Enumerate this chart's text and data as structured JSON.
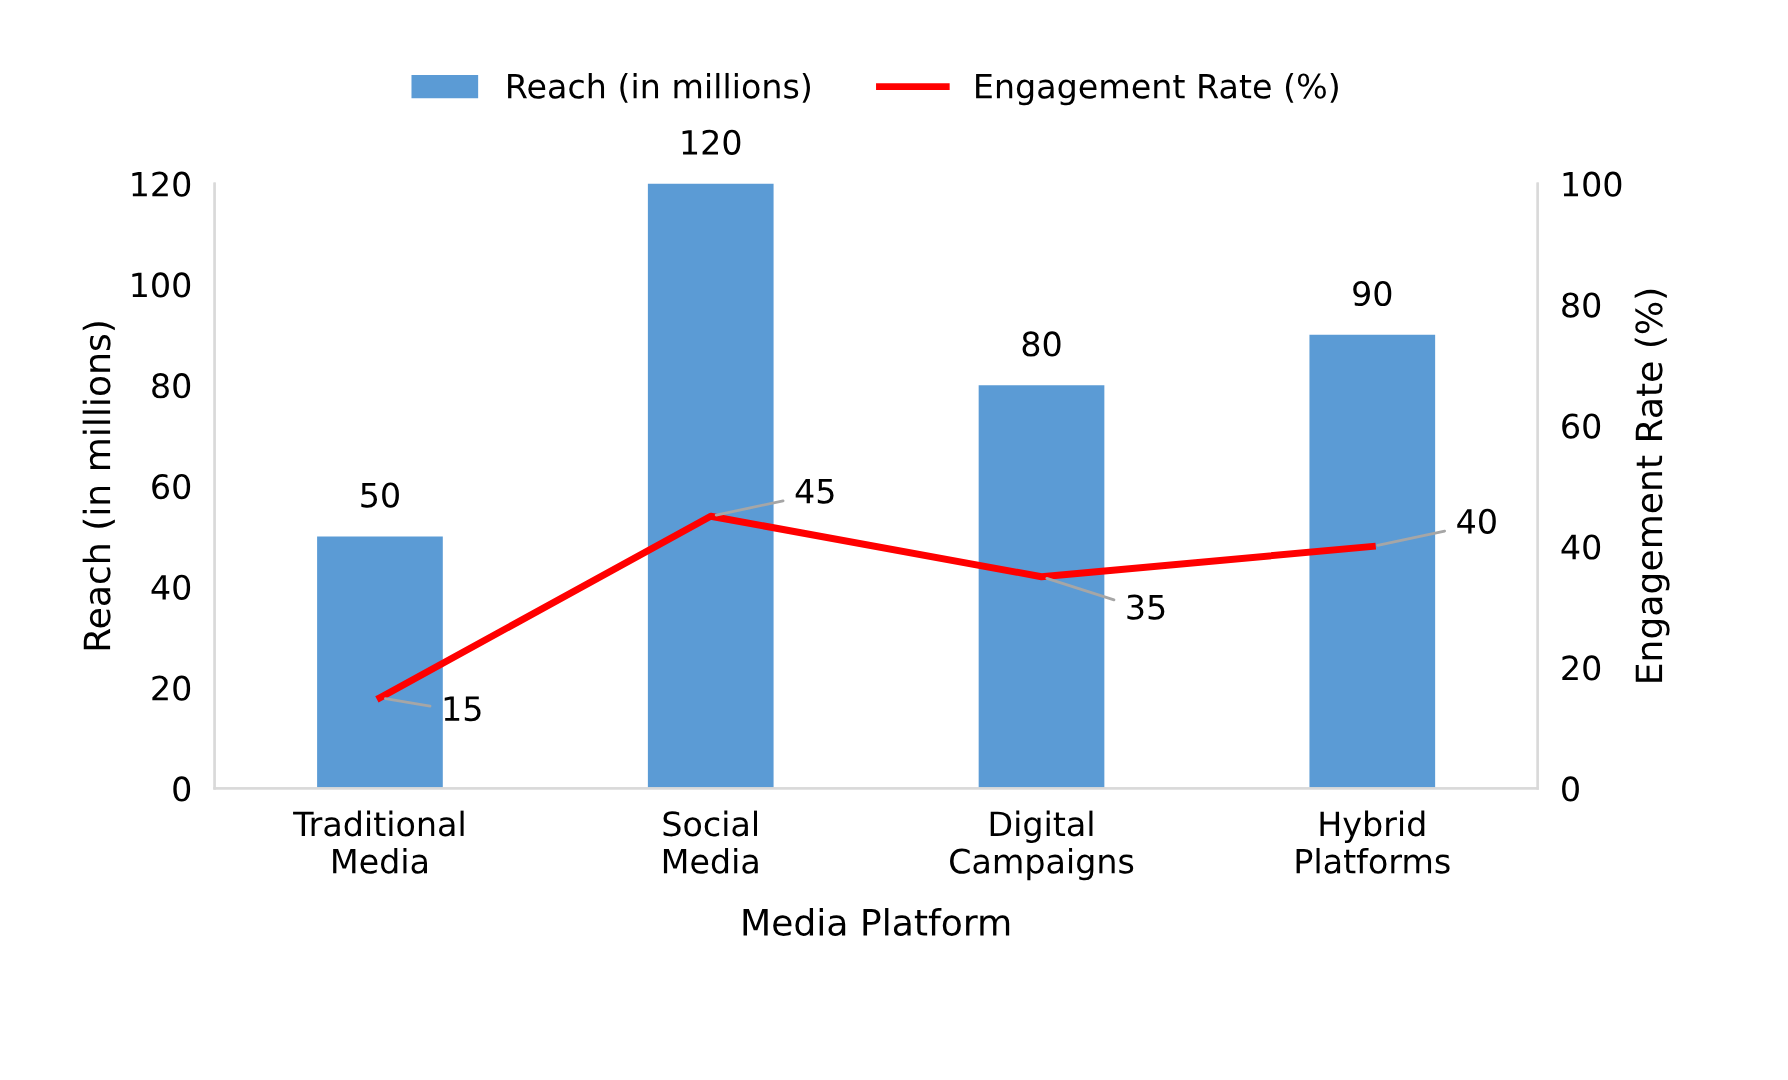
{
  "chart_data": {
    "type": "bar",
    "xlabel": "Media Platform",
    "ylabel": "Reach (in millions)",
    "y2label": "Engagement Rate (%)",
    "categories": [
      "Traditional Media",
      "Social Media",
      "Digital Campaigns",
      "Hybrid Platforms"
    ],
    "series": [
      {
        "name": "Reach (in millions)",
        "color": "#5b9bd5",
        "values": [
          50,
          120,
          80,
          90
        ]
      },
      {
        "name": "Engagement Rate (%)",
        "type": "line",
        "axis": "y2",
        "color": "#ff0000",
        "values": [
          15,
          45,
          35,
          40
        ]
      }
    ],
    "ylim": [
      0,
      120
    ],
    "yticks": [
      0,
      20,
      40,
      60,
      80,
      100,
      120
    ],
    "y2lim": [
      0,
      100
    ],
    "y2ticks": [
      0,
      20,
      40,
      60,
      80,
      100
    ],
    "data_labels": true,
    "legend": "top",
    "grid": false,
    "marker": "none",
    "line_style": "solid"
  }
}
